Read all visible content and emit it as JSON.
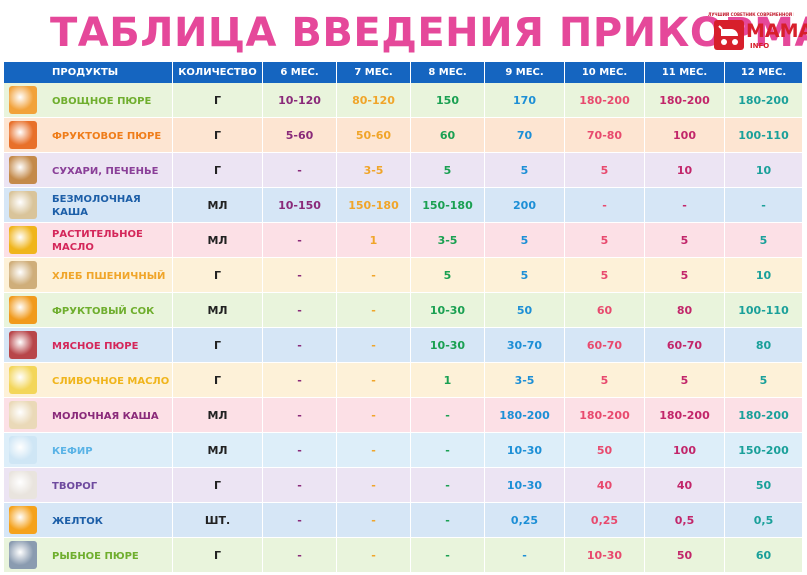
{
  "title": "ТАБЛИЦА ВВЕДЕНИЯ ПРИКОРМА",
  "logo": {
    "word": "МАМА",
    "sub": "INFO",
    "tagline": "ЛУЧШИЙ СОВЕТНИК СОВРЕМЕННОЙ МАМЫ"
  },
  "headers": [
    "ПРОДУКТЫ",
    "КОЛИЧЕСТВО",
    "6 МЕС.",
    "7 МЕС.",
    "8 МЕС.",
    "9 МЕС.",
    "10 МЕС.",
    "11 МЕС.",
    "12 МЕС."
  ],
  "rows": [
    {
      "name": "ОВОЩНОЕ ПЮРЕ",
      "unit": "Г",
      "values": [
        "10-120",
        "80-120",
        "150",
        "170",
        "180-200",
        "180-200",
        "180-200"
      ],
      "bg": "#e9f4dc",
      "text_color": "#6fae2e",
      "icon": "vegetable-puree-icon",
      "icon_color": "#f2a23a"
    },
    {
      "name": "ФРУКТОВОЕ ПЮРЕ",
      "unit": "Г",
      "values": [
        "5-60",
        "50-60",
        "60",
        "70",
        "70-80",
        "100",
        "100-110"
      ],
      "bg": "#fde5d2",
      "text_color": "#ef7d1a",
      "icon": "fruit-puree-icon",
      "icon_color": "#e8702a"
    },
    {
      "name": "СУХАРИ, ПЕЧЕНЬЕ",
      "unit": "Г",
      "values": [
        "-",
        "3-5",
        "5",
        "5",
        "5",
        "10",
        "10"
      ],
      "bg": "#ece4f3",
      "text_color": "#8a3f98",
      "icon": "biscuits-icon",
      "icon_color": "#c48a4a"
    },
    {
      "name": "БЕЗМОЛОЧНАЯ КАША",
      "unit": "МЛ",
      "values": [
        "10-150",
        "150-180",
        "150-180",
        "200",
        "-",
        "-",
        "-"
      ],
      "bg": "#d6e6f6",
      "text_color": "#1d5fa8",
      "icon": "porridge-icon",
      "icon_color": "#d9c49a"
    },
    {
      "name": "РАСТИТЕЛЬНОЕ МАСЛО",
      "unit": "МЛ",
      "values": [
        "-",
        "1",
        "3-5",
        "5",
        "5",
        "5",
        "5"
      ],
      "bg": "#fce0e6",
      "text_color": "#d4275a",
      "icon": "sunflower-icon",
      "icon_color": "#f0b51c"
    },
    {
      "name": "ХЛЕБ ПШЕНИЧНЫЙ",
      "unit": "Г",
      "values": [
        "-",
        "-",
        "5",
        "5",
        "5",
        "5",
        "10"
      ],
      "bg": "#fdf1d8",
      "text_color": "#f0a52a",
      "icon": "bread-icon",
      "icon_color": "#cfae7a"
    },
    {
      "name": "ФРУКТОВЫЙ СОК",
      "unit": "МЛ",
      "values": [
        "-",
        "-",
        "10-30",
        "50",
        "60",
        "80",
        "100-110"
      ],
      "bg": "#e9f4dc",
      "text_color": "#6fae2e",
      "icon": "juice-icon",
      "icon_color": "#f19a1c"
    },
    {
      "name": "МЯСНОЕ ПЮРЕ",
      "unit": "Г",
      "values": [
        "-",
        "-",
        "10-30",
        "30-70",
        "60-70",
        "60-70",
        "80"
      ],
      "bg": "#d6e6f6",
      "text_color": "#d4275a",
      "icon": "meat-icon",
      "icon_color": "#b8464a"
    },
    {
      "name": "СЛИВОЧНОЕ МАСЛО",
      "unit": "Г",
      "values": [
        "-",
        "-",
        "1",
        "3-5",
        "5",
        "5",
        "5"
      ],
      "bg": "#fdf1d8",
      "text_color": "#f0b51c",
      "icon": "butter-icon",
      "icon_color": "#f3d65a"
    },
    {
      "name": "МОЛОЧНАЯ КАША",
      "unit": "МЛ",
      "values": [
        "-",
        "-",
        "-",
        "180-200",
        "180-200",
        "180-200",
        "180-200"
      ],
      "bg": "#fce0e6",
      "text_color": "#8a2a7a",
      "icon": "milk-porridge-icon",
      "icon_color": "#ead9b8"
    },
    {
      "name": "КЕФИР",
      "unit": "МЛ",
      "values": [
        "-",
        "-",
        "-",
        "10-30",
        "50",
        "100",
        "150-200"
      ],
      "bg": "#ddeef9",
      "text_color": "#5ab3e6",
      "icon": "kefir-icon",
      "icon_color": "#cfe6f5"
    },
    {
      "name": "ТВОРОГ",
      "unit": "Г",
      "values": [
        "-",
        "-",
        "-",
        "10-30",
        "40",
        "40",
        "50"
      ],
      "bg": "#ece4f3",
      "text_color": "#6e4a9e",
      "icon": "cottage-cheese-icon",
      "icon_color": "#e9e4de"
    },
    {
      "name": "ЖЕЛТОК",
      "unit": "ШТ.",
      "values": [
        "-",
        "-",
        "-",
        "0,25",
        "0,25",
        "0,5",
        "0,5"
      ],
      "bg": "#d6e6f6",
      "text_color": "#1d5fa8",
      "icon": "egg-yolk-icon",
      "icon_color": "#f5a21c"
    },
    {
      "name": "РЫБНОЕ ПЮРЕ",
      "unit": "Г",
      "values": [
        "-",
        "-",
        "-",
        "-",
        "10-30",
        "50",
        "60"
      ],
      "bg": "#e9f4dc",
      "text_color": "#6fae2e",
      "icon": "fish-icon",
      "icon_color": "#8a9bb0"
    }
  ],
  "column_colors": [
    "#8a2a7a",
    "#f0a52a",
    "#1aa052",
    "#1d8fd6",
    "#e84a6e",
    "#c2266a",
    "#1aa09a"
  ],
  "colors": {
    "header_bg": "#1565c0",
    "title": "#e5489a",
    "logo": "#d71f2b"
  }
}
